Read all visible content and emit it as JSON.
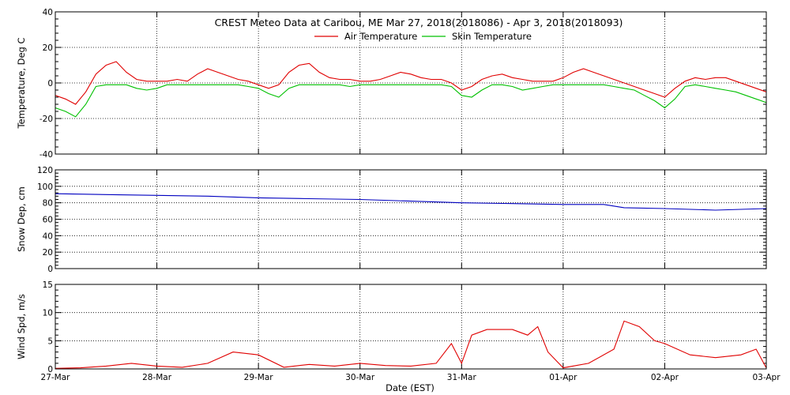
{
  "chart_data": {
    "type": "line",
    "title": "CREST Meteo Data at Caribou, ME   Mar 27, 2018(2018086) - Apr  3, 2018(2018093)",
    "xlabel": "Date (EST)",
    "x_ticks": [
      "27-Mar",
      "28-Mar",
      "29-Mar",
      "30-Mar",
      "31-Mar",
      "01-Apr",
      "02-Apr",
      "03-Apr"
    ],
    "x_range_days": [
      0,
      7
    ],
    "grid": true,
    "legend_position": "top-center",
    "panels": [
      {
        "ylabel": "Temperature, Deg C",
        "ylim": [
          -40,
          40
        ],
        "yticks": [
          -40,
          -20,
          0,
          20,
          40
        ],
        "series": [
          {
            "name": "Air Temperature",
            "color": "#e00000",
            "x": [
              0,
              0.1,
              0.2,
              0.3,
              0.4,
              0.5,
              0.6,
              0.7,
              0.8,
              0.9,
              1.0,
              1.1,
              1.2,
              1.3,
              1.4,
              1.5,
              1.6,
              1.7,
              1.8,
              1.9,
              2.0,
              2.1,
              2.2,
              2.3,
              2.4,
              2.5,
              2.6,
              2.7,
              2.8,
              2.9,
              3.0,
              3.1,
              3.2,
              3.3,
              3.4,
              3.5,
              3.6,
              3.7,
              3.8,
              3.9,
              4.0,
              4.1,
              4.2,
              4.3,
              4.4,
              4.5,
              4.6,
              4.7,
              4.8,
              4.9,
              5.0,
              5.1,
              5.2,
              5.3,
              5.4,
              5.5,
              5.6,
              5.7,
              5.8,
              5.9,
              6.0,
              6.1,
              6.2,
              6.3,
              6.4,
              6.5,
              6.6,
              6.7,
              6.8,
              6.9,
              7.0
            ],
            "values": [
              -7,
              -9,
              -12,
              -5,
              5,
              10,
              12,
              6,
              2,
              1,
              1,
              1,
              2,
              1,
              5,
              8,
              6,
              4,
              2,
              1,
              -1,
              -3,
              -1,
              6,
              10,
              11,
              6,
              3,
              2,
              2,
              1,
              1,
              2,
              4,
              6,
              5,
              3,
              2,
              2,
              0,
              -4,
              -2,
              2,
              4,
              5,
              3,
              2,
              1,
              1,
              1,
              3,
              6,
              8,
              6,
              4,
              2,
              0,
              -2,
              -4,
              -6,
              -8,
              -3,
              1,
              3,
              2,
              3,
              3,
              1,
              -1,
              -3,
              -5
            ]
          },
          {
            "name": "Skin Temperature",
            "color": "#00c000",
            "x": [
              0,
              0.1,
              0.2,
              0.3,
              0.4,
              0.5,
              0.6,
              0.7,
              0.8,
              0.9,
              1.0,
              1.1,
              1.2,
              1.3,
              1.4,
              1.5,
              1.6,
              1.7,
              1.8,
              1.9,
              2.0,
              2.1,
              2.2,
              2.3,
              2.4,
              2.5,
              2.6,
              2.7,
              2.8,
              2.9,
              3.0,
              3.1,
              3.2,
              3.3,
              3.4,
              3.5,
              3.6,
              3.7,
              3.8,
              3.9,
              4.0,
              4.1,
              4.2,
              4.3,
              4.4,
              4.5,
              4.6,
              4.7,
              4.8,
              4.9,
              5.0,
              5.1,
              5.2,
              5.3,
              5.4,
              5.5,
              5.6,
              5.7,
              5.8,
              5.9,
              6.0,
              6.1,
              6.2,
              6.3,
              6.4,
              6.5,
              6.6,
              6.7,
              6.8,
              6.9,
              7.0
            ],
            "values": [
              -14,
              -16,
              -19,
              -12,
              -2,
              -1,
              -1,
              -1,
              -3,
              -4,
              -3,
              -1,
              -1,
              -1,
              -1,
              -1,
              -1,
              -1,
              -1,
              -2,
              -3,
              -6,
              -8,
              -3,
              -1,
              -1,
              -1,
              -1,
              -1,
              -2,
              -1,
              -1,
              -1,
              -1,
              -1,
              -1,
              -1,
              -1,
              -1,
              -2,
              -7,
              -8,
              -4,
              -1,
              -1,
              -2,
              -4,
              -3,
              -2,
              -1,
              -1,
              -1,
              -1,
              -1,
              -1,
              -2,
              -3,
              -4,
              -7,
              -10,
              -14,
              -9,
              -2,
              -1,
              -2,
              -3,
              -4,
              -5,
              -7,
              -9,
              -11
            ]
          }
        ]
      },
      {
        "ylabel": "Snow Dep, cm",
        "ylim": [
          0,
          120
        ],
        "yticks": [
          0,
          20,
          40,
          60,
          80,
          100,
          120
        ],
        "series": [
          {
            "color": "#0000c0",
            "x": [
              0,
              0.5,
              1.0,
              1.5,
              2.0,
              2.5,
              3.0,
              3.5,
              4.0,
              4.5,
              5.0,
              5.4,
              5.6,
              6.0,
              6.5,
              7.0
            ],
            "values": [
              91,
              90,
              89,
              88,
              86,
              85,
              84,
              82,
              80,
              79,
              78,
              78,
              74,
              73,
              71,
              73
            ]
          }
        ]
      },
      {
        "ylabel": "Wind Spd, m/s",
        "ylim": [
          0,
          15
        ],
        "yticks": [
          0,
          5,
          10,
          15
        ],
        "series": [
          {
            "color": "#e00000",
            "x": [
              0,
              0.25,
              0.5,
              0.75,
              1.0,
              1.25,
              1.5,
              1.75,
              2.0,
              2.25,
              2.5,
              2.75,
              3.0,
              3.25,
              3.5,
              3.75,
              3.9,
              4.0,
              4.1,
              4.25,
              4.5,
              4.65,
              4.75,
              4.85,
              5.0,
              5.25,
              5.5,
              5.6,
              5.75,
              5.9,
              6.0,
              6.25,
              6.5,
              6.75,
              6.9,
              7.0
            ],
            "values": [
              0.1,
              0.2,
              0.5,
              1.0,
              0.5,
              0.3,
              1.0,
              3.0,
              2.5,
              0.3,
              0.8,
              0.5,
              1.0,
              0.6,
              0.5,
              1.0,
              4.5,
              1.0,
              6.0,
              7.0,
              7.0,
              6.0,
              7.5,
              3.0,
              0.2,
              1.0,
              3.5,
              8.5,
              7.5,
              5.0,
              4.5,
              2.5,
              2.0,
              2.5,
              3.5,
              0.2
            ]
          }
        ]
      }
    ]
  }
}
